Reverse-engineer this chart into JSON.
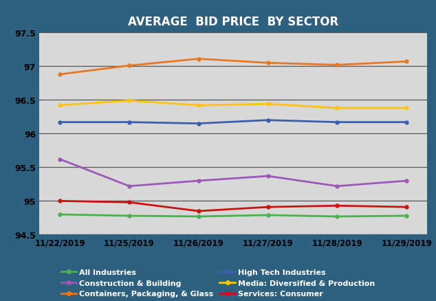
{
  "title": "AVERAGE  BID PRICE  BY SECTOR",
  "title_color": "#FFFFFF",
  "background_color": "#2E6080",
  "plot_bg_color": "#D8D8D8",
  "x_labels": [
    "11/22/2019",
    "11/25/2019",
    "11/26/2019",
    "11/27/2019",
    "11/28/2019",
    "11/29/2019"
  ],
  "ylim": [
    94.5,
    97.5
  ],
  "yticks": [
    94.5,
    95.0,
    95.5,
    96.0,
    96.5,
    97.0,
    97.5
  ],
  "ytick_labels": [
    "94.5",
    "95",
    "95.5",
    "96",
    "96.5",
    "97",
    "97.5"
  ],
  "series": {
    "All Industries": {
      "color": "#4CAF50",
      "values": [
        94.8,
        94.78,
        94.77,
        94.79,
        94.77,
        94.78
      ]
    },
    "Containers, Packaging, & Glass": {
      "color": "#E87722",
      "values": [
        96.88,
        97.01,
        97.11,
        97.05,
        97.02,
        97.07
      ]
    },
    "Media: Diversified & Production": {
      "color": "#FFC20E",
      "values": [
        96.42,
        96.49,
        96.42,
        96.44,
        96.38,
        96.38
      ]
    },
    "Construction & Building": {
      "color": "#9B59B6",
      "values": [
        95.62,
        95.22,
        95.3,
        95.37,
        95.22,
        95.3
      ]
    },
    "High Tech Industries": {
      "color": "#3B5DAB",
      "values": [
        96.17,
        96.17,
        96.15,
        96.2,
        96.17,
        96.17
      ]
    },
    "Services: Consumer": {
      "color": "#CC1111",
      "values": [
        95.0,
        94.98,
        94.85,
        94.91,
        94.93,
        94.91
      ]
    }
  },
  "legend_left_col": [
    "All Industries",
    "Containers, Packaging, & Glass",
    "Media: Diversified & Production"
  ],
  "legend_right_col": [
    "Construction & Building",
    "High Tech Industries",
    "Services: Consumer"
  ]
}
